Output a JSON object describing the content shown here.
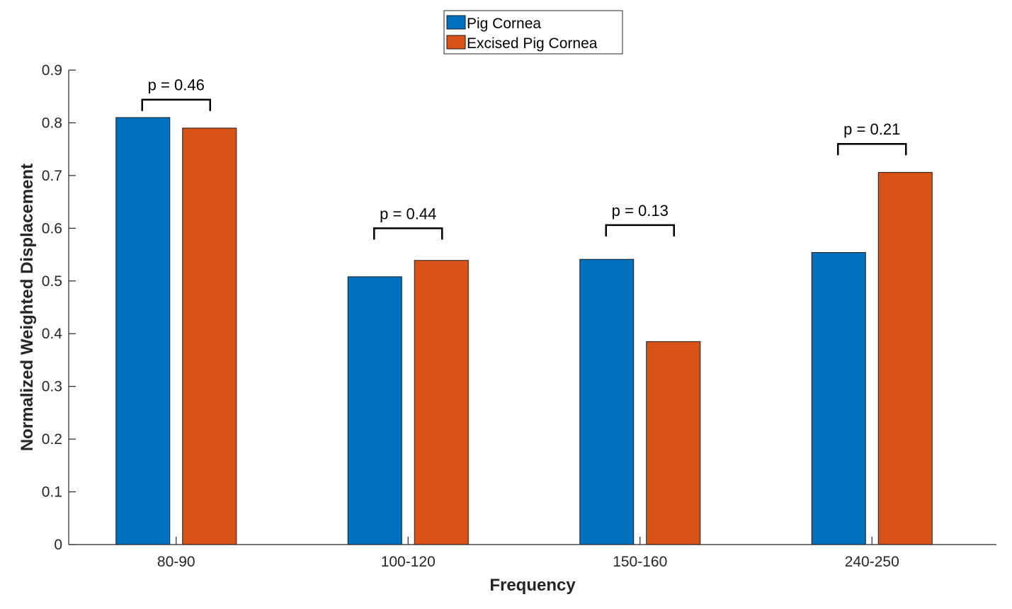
{
  "chart_data": {
    "type": "bar",
    "title": "",
    "xlabel": "Frequency",
    "ylabel": "Normalized Weighted Displacement",
    "categories": [
      "80-90",
      "100-120",
      "150-160",
      "240-250"
    ],
    "ylim": [
      0,
      0.9
    ],
    "yticks": [
      0,
      0.1,
      0.2,
      0.3,
      0.4,
      0.5,
      0.6,
      0.7,
      0.8,
      0.9
    ],
    "ytick_labels": [
      "0",
      "0.1",
      "0.2",
      "0.3",
      "0.4",
      "0.5",
      "0.6",
      "0.7",
      "0.8",
      "0.9"
    ],
    "grid": false,
    "legend_position": "top-center",
    "series": [
      {
        "name": "Pig Cornea",
        "color": "#0072BD",
        "values": [
          0.81,
          0.508,
          0.541,
          0.554
        ]
      },
      {
        "name": "Excised Pig Cornea",
        "color": "#D95319",
        "values": [
          0.79,
          0.539,
          0.385,
          0.706
        ]
      }
    ],
    "annotations": [
      {
        "category": "80-90",
        "text": "p = 0.46",
        "value": 0.844
      },
      {
        "category": "100-120",
        "text": "p = 0.44",
        "value": 0.6
      },
      {
        "category": "150-160",
        "text": "p = 0.13",
        "value": 0.606
      },
      {
        "category": "240-250",
        "text": "p = 0.21",
        "value": 0.76
      }
    ]
  }
}
